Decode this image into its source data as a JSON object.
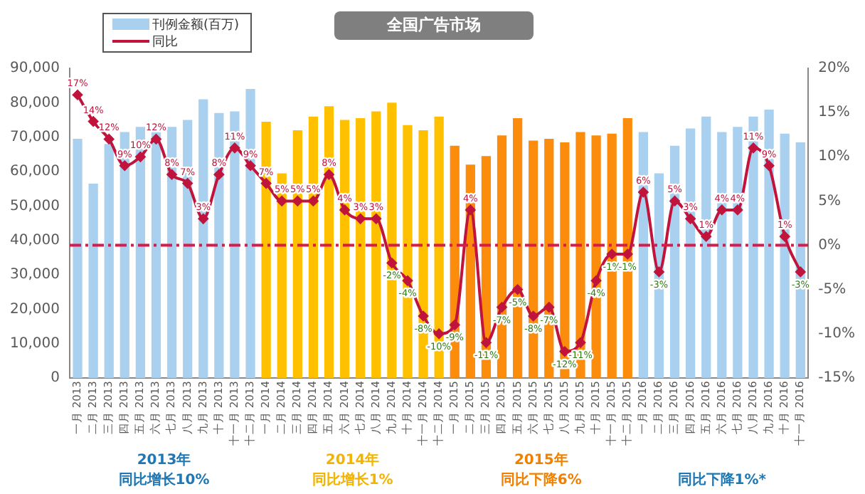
{
  "chart_data": {
    "type": "bar",
    "title": "全国广告市场",
    "categories": [
      "一月 2013",
      "二月 2013",
      "三月 2013",
      "四月 2013",
      "五月 2013",
      "六月 2013",
      "七月 2013",
      "八月 2013",
      "九月 2013",
      "十月 2013",
      "十一月 2013",
      "十二月 2013",
      "一月 2014",
      "二月 2014",
      "三月 2014",
      "四月 2014",
      "五月 2014",
      "六月 2014",
      "七月 2014",
      "八月 2014",
      "九月 2014",
      "十月 2014",
      "十一月 2014",
      "十二月 2014",
      "一月 2015",
      "二月 2015",
      "三月 2015",
      "四月 2015",
      "五月 2015",
      "六月 2015",
      "七月 2015",
      "八月 2015",
      "九月 2015",
      "十月 2015",
      "十一月 2015",
      "十二月 2015",
      "一月 2016",
      "二月 2016",
      "三月 2016",
      "四月 2016",
      "五月 2016",
      "六月 2016",
      "七月 2016",
      "八月 2016",
      "九月 2016",
      "十月 2016",
      "十一月 2016"
    ],
    "series": [
      {
        "name": "刊例金额(百万)",
        "color": "#a9d0ef",
        "colors": [
          "#a9d0ef",
          "#a9d0ef",
          "#a9d0ef",
          "#a9d0ef",
          "#a9d0ef",
          "#a9d0ef",
          "#a9d0ef",
          "#a9d0ef",
          "#a9d0ef",
          "#a9d0ef",
          "#a9d0ef",
          "#a9d0ef",
          "#ffc000",
          "#ffc000",
          "#ffc000",
          "#ffc000",
          "#ffc000",
          "#ffc000",
          "#ffc000",
          "#ffc000",
          "#ffc000",
          "#ffc000",
          "#ffc000",
          "#ffc000",
          "#fb8c0c",
          "#fb8c0c",
          "#fb8c0c",
          "#fb8c0c",
          "#fb8c0c",
          "#fb8c0c",
          "#fb8c0c",
          "#fb8c0c",
          "#fb8c0c",
          "#fb8c0c",
          "#fb8c0c",
          "#fb8c0c",
          "#a9d0ef",
          "#a9d0ef",
          "#a9d0ef",
          "#a9d0ef",
          "#a9d0ef",
          "#a9d0ef",
          "#a9d0ef",
          "#a9d0ef",
          "#a9d0ef",
          "#a9d0ef",
          "#a9d0ef"
        ],
        "values": [
          69500,
          56500,
          68000,
          71500,
          73000,
          71500,
          73000,
          75000,
          81000,
          77000,
          77500,
          84000,
          74500,
          59500,
          72000,
          76000,
          79000,
          75000,
          75500,
          77500,
          80000,
          73500,
          72000,
          76000,
          67500,
          62000,
          64500,
          70500,
          75500,
          69000,
          69500,
          68500,
          71500,
          70500,
          71000,
          75500,
          71500,
          59500,
          67500,
          72500,
          76000,
          71500,
          73000,
          76000,
          78000,
          71000,
          68500
        ]
      },
      {
        "name": "同比",
        "type": "line",
        "axis": "y2",
        "color": "#c0143c",
        "marker": "diamond",
        "value_labels": [
          "17%",
          "14%",
          "12%",
          "9%",
          "10%",
          "12%",
          "8%",
          "7%",
          "3%",
          "8%",
          "11%",
          "9%",
          "7%",
          "5%",
          "5%",
          "5%",
          "8%",
          "4%",
          "3%",
          "3%",
          "-2%",
          "-4%",
          "-8%",
          "-10%",
          "-9%",
          "4%",
          "-11%",
          "-7%",
          "-5%",
          "-8%",
          "-7%",
          "-12%",
          "-11%",
          "-4%",
          "-1%",
          "-1%",
          "6%",
          "-3%",
          "5%",
          "3%",
          "1%",
          "4%",
          "4%",
          "11%",
          "9%",
          "1%",
          "-3%"
        ],
        "values": [
          17,
          14,
          12,
          9,
          10,
          12,
          8,
          7,
          3,
          8,
          11,
          9,
          7,
          5,
          5,
          5,
          8,
          4,
          3,
          3,
          -2,
          -4,
          -8,
          -10,
          -9,
          4,
          -11,
          -7,
          -5,
          -8,
          -7,
          -12,
          -11,
          -4,
          -1,
          -1,
          6,
          -3,
          5,
          3,
          1,
          4,
          4,
          11,
          9,
          1,
          -3
        ]
      }
    ],
    "ylim": [
      0,
      90000
    ],
    "yticks": [
      0,
      {
        "value": 10000,
        "label": "10,000"
      },
      {
        "value": 20000,
        "label": "20,000"
      },
      {
        "value": 30000,
        "label": "30,000"
      },
      {
        "value": 40000,
        "label": "40,000"
      },
      {
        "value": 50000,
        "label": "50,000"
      },
      {
        "value": 60000,
        "label": "60,000"
      },
      {
        "value": 70000,
        "label": "70,000"
      },
      {
        "value": 80000,
        "label": "80,000"
      },
      {
        "value": 90000,
        "label": "90,000"
      }
    ],
    "y2lim": [
      -15,
      20
    ],
    "y2ticks": [
      {
        "value": -15,
        "label": "-15%"
      },
      {
        "value": -10,
        "label": "-10%"
      },
      {
        "value": -5,
        "label": "-5%"
      },
      {
        "value": 0,
        "label": "0%"
      },
      {
        "value": 5,
        "label": "5%"
      },
      {
        "value": 10,
        "label": "10%"
      },
      {
        "value": 15,
        "label": "15%"
      },
      {
        "value": 20,
        "label": "20%"
      }
    ],
    "ref_lines": [
      {
        "axis": "y2",
        "value": 0,
        "color": "#d81b4a",
        "line_style": "dashdot"
      }
    ],
    "grid": false,
    "legend": "top left",
    "annotations": [
      "2013年",
      "2014年",
      "2015年",
      "同比增长10%",
      "同比增长1%",
      "同比下降6%",
      "同比下降1%*"
    ]
  }
}
